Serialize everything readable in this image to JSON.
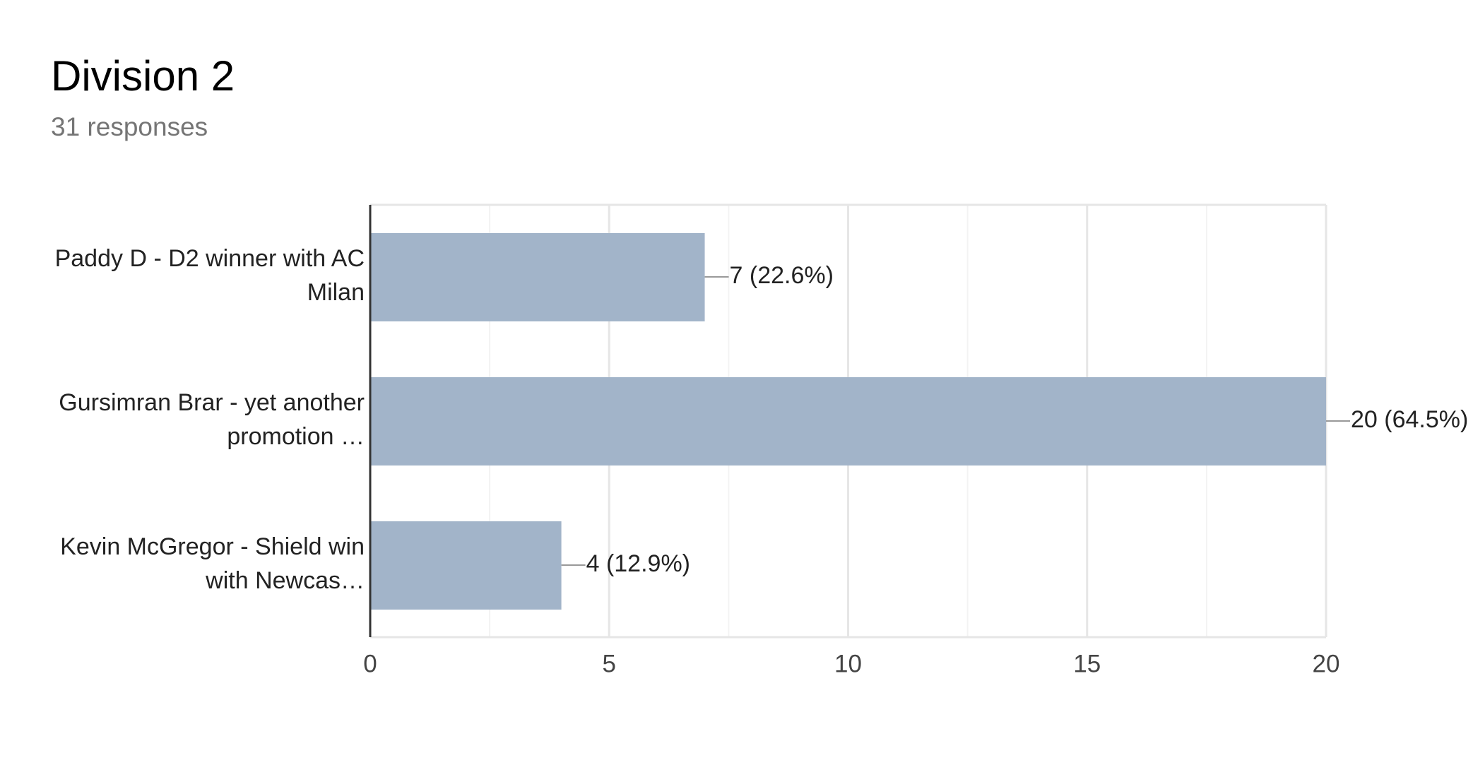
{
  "chart_data": {
    "type": "hbar",
    "title": "Division 2",
    "subtitle": "31 responses",
    "categories": [
      [
        "Paddy D - D2 winner with AC",
        "Milan"
      ],
      [
        "Gursimran Brar - yet another",
        "promotion …"
      ],
      [
        "Kevin McGregor - Shield win",
        "with Newcas…"
      ]
    ],
    "values": [
      7,
      20,
      4
    ],
    "value_labels": [
      "7 (22.6%)",
      "20 (64.5%)",
      "4 (12.9%)"
    ],
    "color": "#a2b4c9",
    "xlim": [
      0,
      20
    ],
    "xticks": [
      0,
      5,
      10,
      15,
      20
    ],
    "minor_xticks": [
      2.5,
      7.5,
      12.5,
      17.5
    ],
    "grid": true
  }
}
